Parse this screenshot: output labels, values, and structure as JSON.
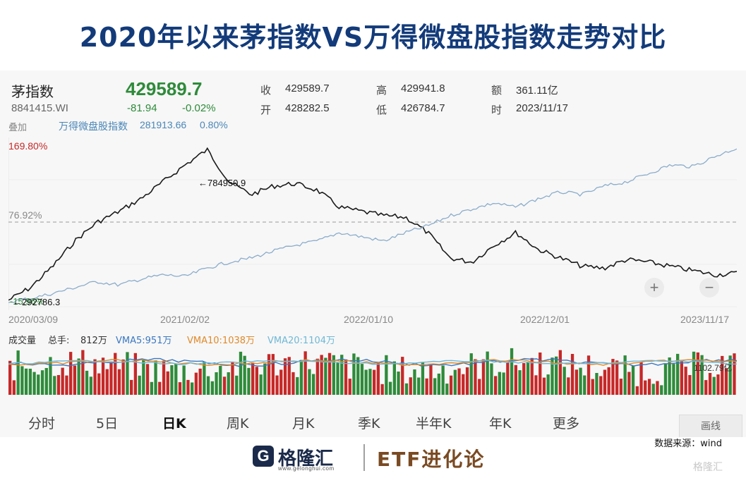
{
  "title": "2020年以来茅指数VS万得微盘股指数走势对比",
  "quote": {
    "name": "茅指数",
    "code": "8841415.WI",
    "price": "429589.7",
    "change": "-81.94",
    "change_pct": "-0.02%",
    "close_label": "收",
    "close_value": "429589.7",
    "open_label": "开",
    "open_value": "428282.5",
    "high_label": "高",
    "high_value": "429941.8",
    "low_label": "低",
    "low_value": "426784.7",
    "amount_label": "额",
    "amount_value": "361.11亿",
    "time_label": "时",
    "time_value": "2023/11/17"
  },
  "overlay": {
    "label": "叠加",
    "name": "万得微盘股指数",
    "value": "281913.66",
    "pct": "0.80%"
  },
  "volume": {
    "label": "成交量",
    "total_label": "总手:",
    "total_value": "812万",
    "vma5": "VMA5:951万",
    "vma10": "VMA10:1038万",
    "vma20": "VMA20:1104万",
    "current_marker": "1102.79亿"
  },
  "tabs": [
    "分时",
    "5日",
    "日K",
    "周K",
    "月K",
    "季K",
    "半年K",
    "年K",
    "更多"
  ],
  "active_tab": "日K",
  "draw_button": "画线",
  "source": "数据来源：wind",
  "logo": {
    "glyph": "G",
    "name": "格隆汇",
    "url": "www.gelonghui.com"
  },
  "brand": "ETF进化论",
  "watermark": "格隆汇",
  "colors": {
    "main_line": "#1a1a1a",
    "overlay_line": "#8aaccc",
    "up": "#c62828",
    "down": "#2e8b3a",
    "vma5": "#3a78c2",
    "vma10": "#e08a2a",
    "vma20": "#6fb8d6"
  },
  "chart_data": {
    "type": "line",
    "x_ticks": [
      "2020/03/09",
      "2021/02/02",
      "2022/01/10",
      "2022/12/01",
      "2023/11/17"
    ],
    "y_tick_labels": [
      "169.80%",
      "76.92%",
      "-15.96%"
    ],
    "annotations": [
      "784950.9",
      "292786.3"
    ],
    "series": [
      {
        "name": "茅指数",
        "y": [
          -10,
          5,
          30,
          60,
          82,
          95,
          110,
          130,
          150,
          168,
          130,
          115,
          125,
          128,
          120,
          100,
          95,
          90,
          88,
          70,
          40,
          35,
          55,
          70,
          50,
          40,
          30,
          28,
          38,
          35,
          30,
          25,
          20,
          22
        ]
      },
      {
        "name": "万得微盘股指数",
        "y": [
          -12,
          -8,
          -2,
          5,
          12,
          8,
          15,
          20,
          18,
          28,
          35,
          40,
          48,
          55,
          60,
          70,
          65,
          60,
          70,
          78,
          90,
          98,
          105,
          100,
          110,
          118,
          115,
          125,
          130,
          140,
          150,
          148,
          160,
          170
        ]
      }
    ]
  }
}
